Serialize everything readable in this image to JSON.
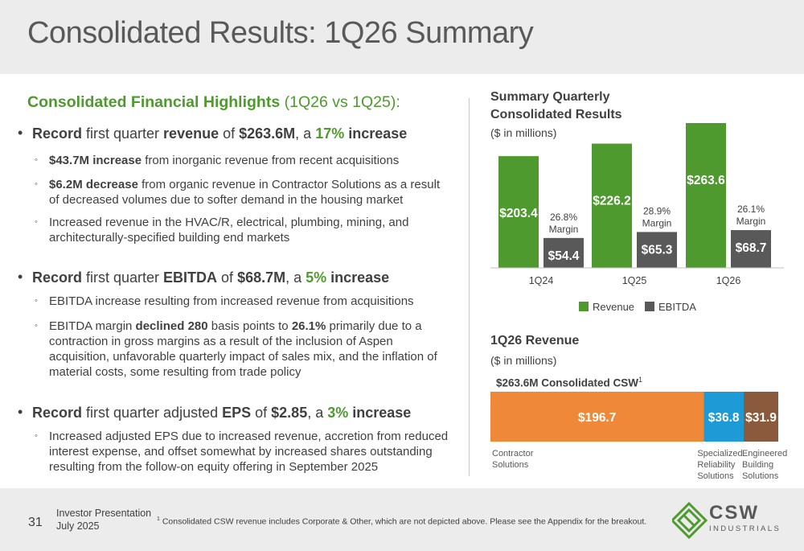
{
  "slide": {
    "title": "Consolidated Results: 1Q26 Summary"
  },
  "highlights": {
    "heading": "Consolidated Financial Highlights",
    "heading_sub": "(1Q26 vs 1Q25):",
    "revenue": {
      "b1": "Record",
      "t1": " first quarter ",
      "b2": "revenue",
      "t2": " of ",
      "b3": "$263.6M",
      "t3": ", a ",
      "g1": "17%",
      "b4": " increase",
      "subs": [
        {
          "b": "$43.7M increase",
          "t": " from inorganic revenue from recent acquisitions"
        },
        {
          "b": "$6.2M decrease",
          "t": " from organic revenue in Contractor Solutions as a result of decreased volumes due to softer demand in the housing market"
        },
        {
          "b": "",
          "t": "Increased revenue in the HVAC/R, electrical, plumbing, mining, and architecturally-specified building end markets"
        }
      ]
    },
    "ebitda": {
      "b1": "Record",
      "t1": " first quarter ",
      "b2": "EBITDA",
      "t2": " of ",
      "b3": "$68.7M",
      "t3": ", a ",
      "g1": "5%",
      "b4": " increase",
      "subs": [
        {
          "t1": "EBITDA increase resulting from increased revenue from acquisitions"
        },
        {
          "t1": "EBITDA margin ",
          "b1": "declined 280",
          "t2": " basis points to ",
          "b2": "26.1%",
          "t3": " primarily due to a contraction in gross margins as a result of the inclusion of Aspen acquisition, unfavorable quarterly impact of sales mix, and the inflation of material costs, some resulting from trade policy"
        }
      ]
    },
    "eps": {
      "b1": "Record",
      "t1": " first quarter adjusted ",
      "b2": "EPS",
      "t2": " of ",
      "b3": "$2.85",
      "t3": ", a ",
      "g1": "3%",
      "b4": " increase",
      "subs": [
        {
          "t": "Increased adjusted EPS due to increased revenue, accretion from reduced interest expense, and offset somewhat by increased shares outstanding resulting from the follow-on equity offering in September 2025"
        }
      ]
    }
  },
  "quarterly_chart": {
    "title_line1": "Summary Quarterly",
    "title_line2": "Consolidated Results",
    "units": "($ in millions)",
    "legend_revenue": "Revenue",
    "legend_ebitda": "EBITDA",
    "margin_word": "Margin"
  },
  "revenue_chart": {
    "title": "1Q26 Revenue",
    "units": "($ in millions)",
    "total_label": "$263.6M  Consolidated CSW",
    "total_sup": "1"
  },
  "colors": {
    "green": "#4e9a2e",
    "dark_gray": "#595959",
    "orange": "#f0883a",
    "blue": "#1e9ad6",
    "brown": "#8b5a3c"
  },
  "chart_data": [
    {
      "type": "bar",
      "categories": [
        "1Q24",
        "1Q25",
        "1Q26"
      ],
      "series": [
        {
          "name": "Revenue",
          "values": [
            203.4,
            226.2,
            263.6
          ],
          "labels": [
            "$203.4",
            "$226.2",
            "$263.6"
          ],
          "color": "#4e9a2e"
        },
        {
          "name": "EBITDA",
          "values": [
            54.4,
            65.3,
            68.7
          ],
          "labels": [
            "$54.4",
            "$65.3",
            "$68.7"
          ],
          "color": "#595959"
        }
      ],
      "margins": [
        "26.8%",
        "28.9%",
        "26.1%"
      ],
      "ylim": [
        0,
        263.6
      ],
      "legend": "bottom"
    },
    {
      "type": "bar",
      "orientation": "horizontal-stacked",
      "segments": [
        {
          "name": "Contractor Solutions",
          "value": 196.7,
          "label": "$196.7",
          "color": "#f0883a"
        },
        {
          "name": "Specialized Reliability Solutions",
          "value": 36.8,
          "label": "$36.8",
          "color": "#1e9ad6"
        },
        {
          "name": "Engineered Building Solutions",
          "value": 31.9,
          "label": "$31.9",
          "color": "#8b5a3c"
        }
      ]
    }
  ],
  "footer": {
    "page": "31",
    "line1": "Investor Presentation",
    "line2": "July 2025",
    "footnote_sup": "1",
    "footnote": " Consolidated CSW revenue includes Corporate & Other, which are not depicted above.  Please see the Appendix for the breakout.",
    "logo_name": "CSW",
    "logo_sub": "INDUSTRIALS"
  }
}
